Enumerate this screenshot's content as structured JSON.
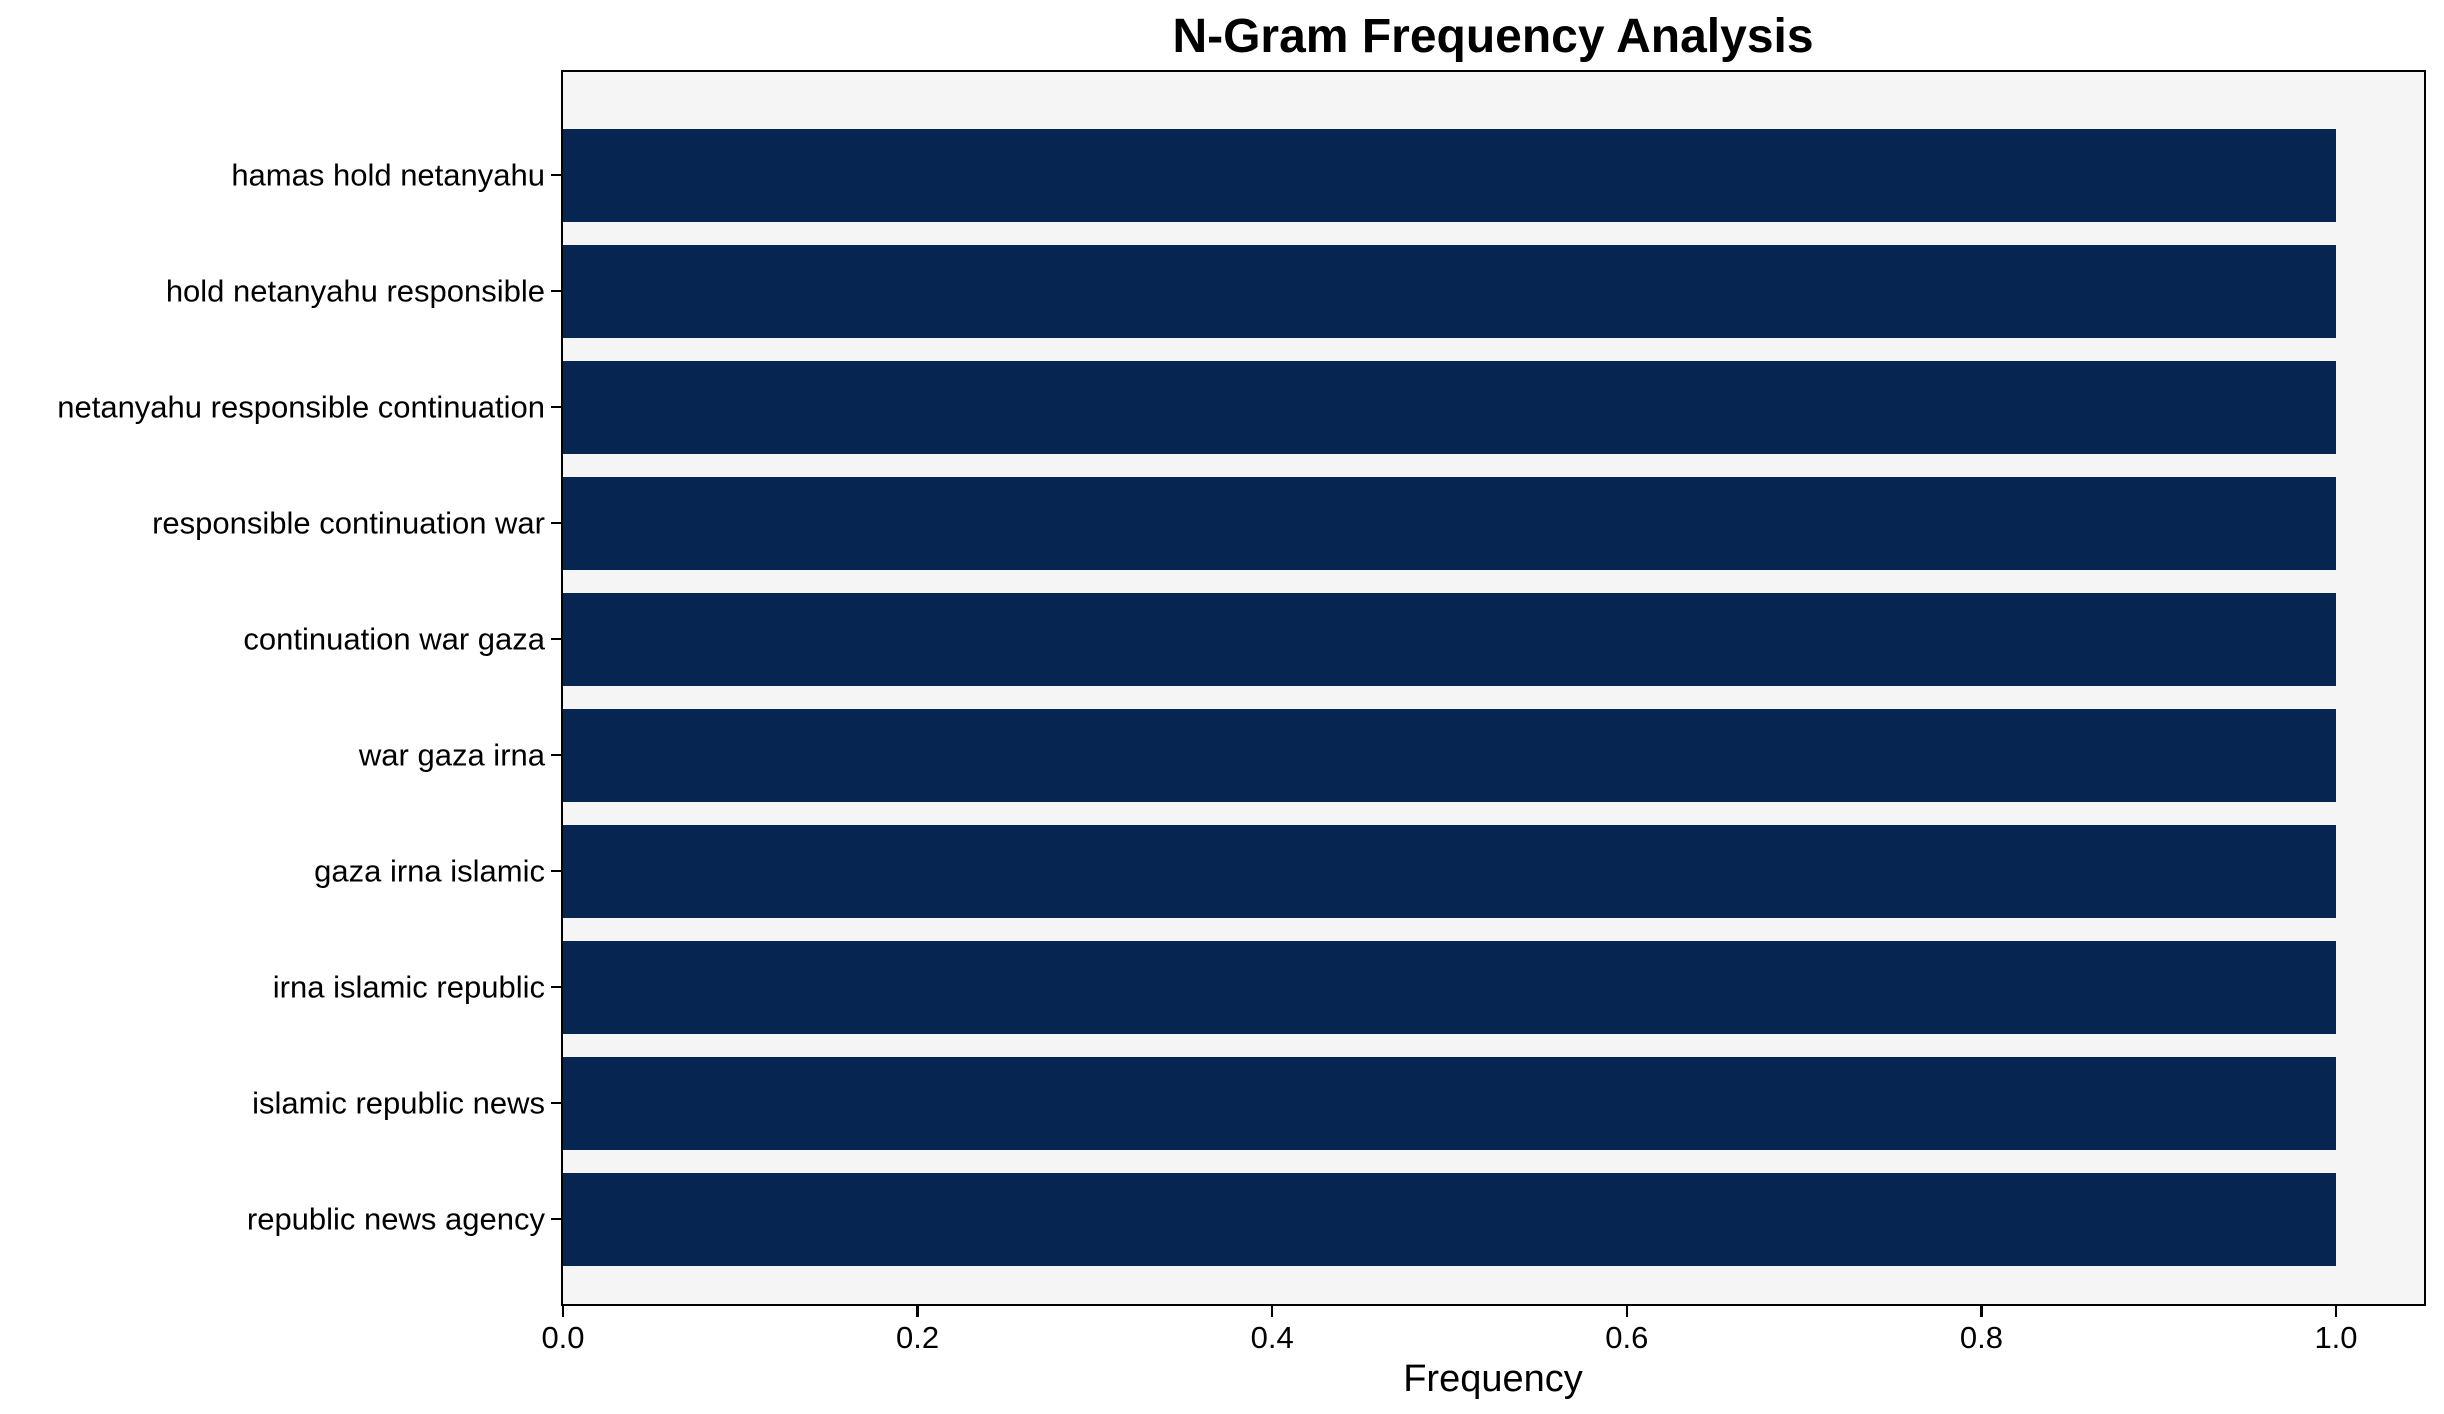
{
  "chart_data": {
    "type": "bar",
    "orientation": "horizontal",
    "title": "N-Gram Frequency Analysis",
    "xlabel": "Frequency",
    "ylabel": "",
    "categories": [
      "hamas hold netanyahu",
      "hold netanyahu responsible",
      "netanyahu responsible continuation",
      "responsible continuation war",
      "continuation war gaza",
      "war gaza irna",
      "gaza irna islamic",
      "irna islamic republic",
      "islamic republic news",
      "republic news agency"
    ],
    "values": [
      1.0,
      1.0,
      1.0,
      1.0,
      1.0,
      1.0,
      1.0,
      1.0,
      1.0,
      1.0
    ],
    "xticks": [
      0.0,
      0.2,
      0.4,
      0.6,
      0.8,
      1.0
    ],
    "xtick_labels": [
      "0.0",
      "0.2",
      "0.4",
      "0.6",
      "0.8",
      "1.0"
    ],
    "xlim": [
      0,
      1.049
    ],
    "grid": false,
    "legend": "none",
    "colors": {
      "bar": "#062550",
      "plot_bg": "#f5f5f6",
      "figure_bg": "#ffffff",
      "text": "#000000",
      "spine": "#000000"
    }
  }
}
